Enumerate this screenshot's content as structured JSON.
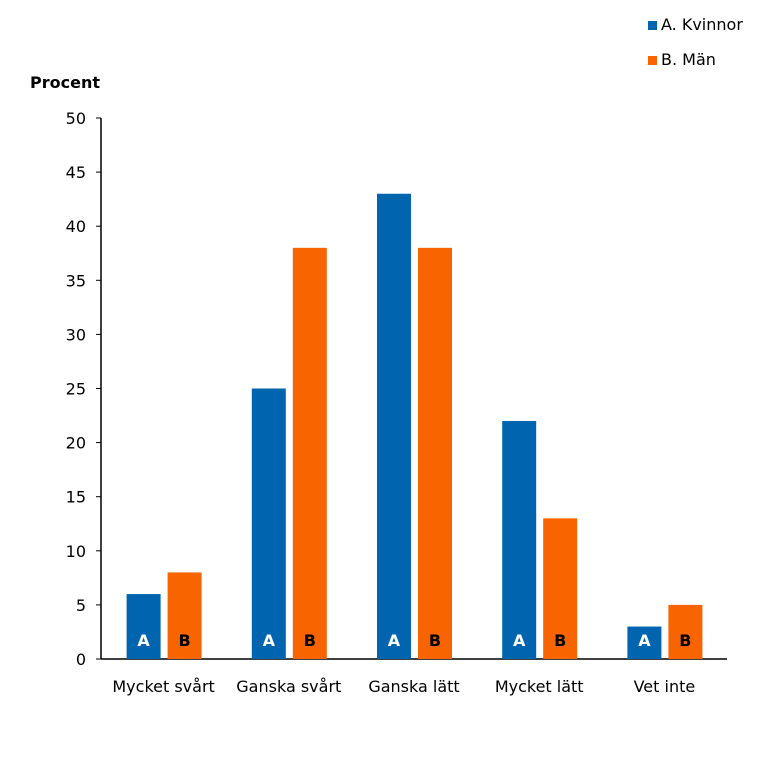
{
  "chart_data": {
    "type": "bar",
    "ylabel": "Procent",
    "ylim": [
      0,
      50
    ],
    "yticks": [
      0,
      5,
      10,
      15,
      20,
      25,
      30,
      35,
      40,
      45,
      50
    ],
    "categories": [
      "Mycket svårt",
      "Ganska svårt",
      "Ganska lätt",
      "Mycket lätt",
      "Vet inte"
    ],
    "legend_position": "top-right",
    "grid": false,
    "series": [
      {
        "name": "A. Kvinnor",
        "bar_label": "A",
        "color": "#0064AF",
        "values": [
          6,
          25,
          43,
          22,
          3
        ]
      },
      {
        "name": "B. Män",
        "bar_label": "B",
        "color": "#F76400",
        "values": [
          8,
          38,
          38,
          13,
          5
        ]
      }
    ]
  }
}
